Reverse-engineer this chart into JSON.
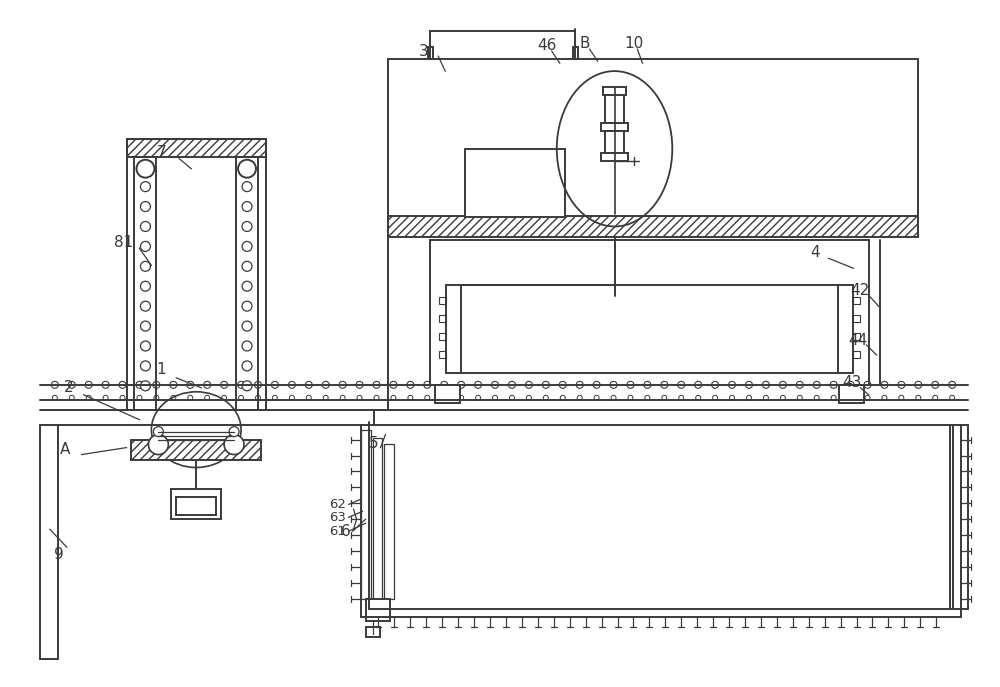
{
  "bg_color": "#ffffff",
  "line_color": "#3a3a3a",
  "fig_width": 10.0,
  "fig_height": 6.87,
  "dpi": 100
}
